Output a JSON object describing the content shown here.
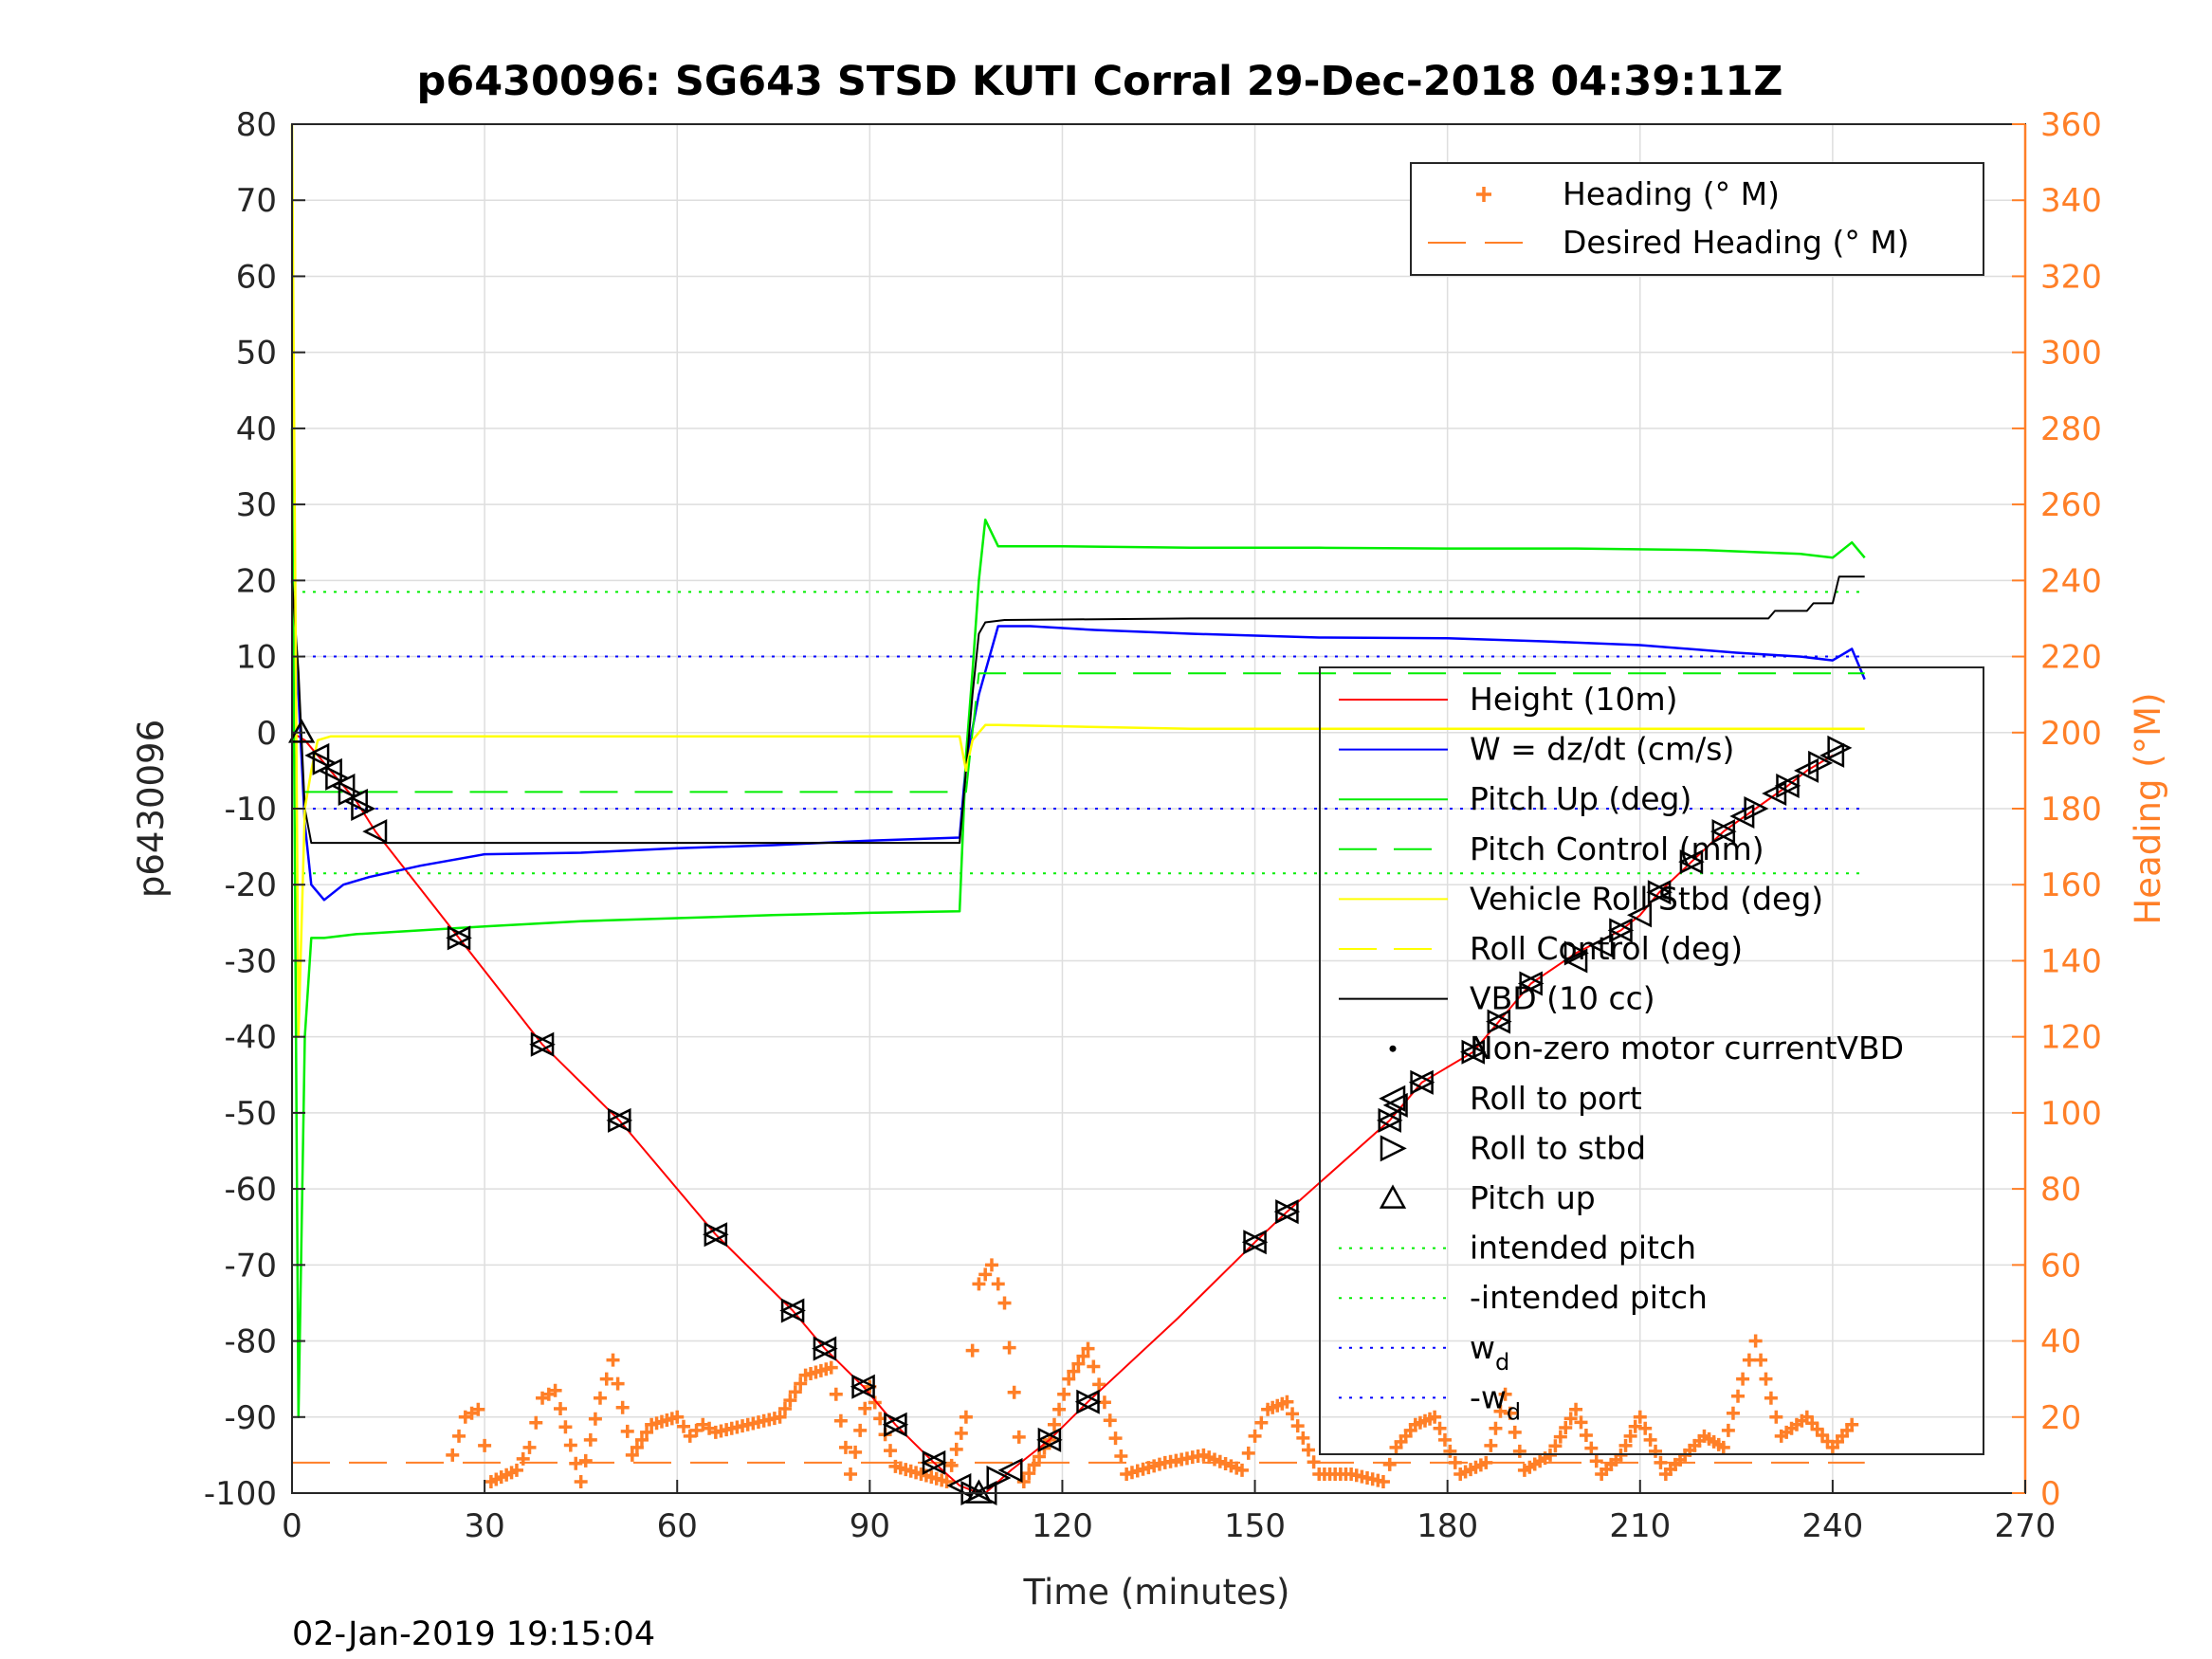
{
  "chart_data": {
    "type": "line",
    "title": "p6430096: SG643 STSD KUTI Corral 29-Dec-2018 04:39:11Z",
    "xlabel": "Time (minutes)",
    "ylabel_left": "p6430096",
    "ylabel_right": "Heading (°M)",
    "footer": "02-Jan-2019 19:15:04",
    "xlim": [
      0,
      270
    ],
    "ylim_left": [
      -100,
      80
    ],
    "ylim_right": [
      0,
      360
    ],
    "grid": true,
    "x_ticks": [
      "0",
      "30",
      "60",
      "90",
      "120",
      "150",
      "180",
      "210",
      "240",
      "270"
    ],
    "y_ticks_left": [
      "-100",
      "-90",
      "-80",
      "-70",
      "-60",
      "-50",
      "-40",
      "-30",
      "-20",
      "-10",
      "0",
      "10",
      "20",
      "30",
      "40",
      "50",
      "60",
      "70",
      "80"
    ],
    "y_ticks_right": [
      "0",
      "20",
      "40",
      "60",
      "80",
      "100",
      "120",
      "140",
      "160",
      "180",
      "200",
      "220",
      "240",
      "260",
      "280",
      "300",
      "320",
      "340",
      "360"
    ],
    "legend_heading": {
      "placement": "top-right",
      "entries": [
        "Heading (° M)",
        "Desired Heading (° M)"
      ]
    },
    "legend_main": {
      "placement": "right",
      "entries": [
        {
          "label": "Height (10m)",
          "color": "#ff0000",
          "style": "solid"
        },
        {
          "label": "W = dz/dt (cm/s)",
          "color": "#0000ff",
          "style": "solid"
        },
        {
          "label": "Pitch Up (deg)",
          "color": "#00ee00",
          "style": "solid"
        },
        {
          "label": "Pitch Control (mm)",
          "color": "#00ee00",
          "style": "dashed"
        },
        {
          "label": "Vehicle Roll Stbd (deg)",
          "color": "#ffff00",
          "style": "solid"
        },
        {
          "label": "Roll Control (deg)",
          "color": "#ffff00",
          "style": "dashed"
        },
        {
          "label": "VBD (10 cc)",
          "color": "#000000",
          "style": "solid"
        },
        {
          "label": "Non-zero motor currentVBD",
          "color": "#000000",
          "style": "dot"
        },
        {
          "label": "Roll to port",
          "color": "#000000",
          "style": "marker-left"
        },
        {
          "label": "Roll to stbd",
          "color": "#000000",
          "style": "marker-right"
        },
        {
          "label": "Pitch up",
          "color": "#000000",
          "style": "marker-up"
        },
        {
          "label": "intended pitch",
          "color": "#00ee00",
          "style": "dotted"
        },
        {
          "label": "-intended pitch",
          "color": "#00ee00",
          "style": "dotted"
        },
        {
          "label": "w",
          "sub": "d",
          "color": "#0000ff",
          "style": "dotted"
        },
        {
          "label": "-w",
          "sub": "d",
          "color": "#0000ff",
          "style": "dotted"
        }
      ]
    },
    "colors": {
      "height": "#ff0000",
      "w": "#0000ff",
      "pitch": "#00ee00",
      "roll": "#ffff00",
      "vbd": "#000000",
      "heading": "#ff7f27",
      "reference_green": "#00ee00",
      "reference_blue": "#0000ff"
    },
    "reference_lines": {
      "intended_pitch": 18.5,
      "neg_intended_pitch": -18.5,
      "wd": 10,
      "neg_wd": -10,
      "desired_heading_deg": 8
    },
    "series": [
      {
        "name": "Height (10m)",
        "axis": "left",
        "x": [
          0,
          2,
          4,
          6,
          8,
          10,
          13,
          26,
          39,
          51,
          66,
          78,
          83,
          89,
          94,
          100,
          104,
          107,
          108,
          112,
          118,
          124,
          138,
          150,
          155,
          171,
          176,
          184,
          188,
          193,
          200,
          207,
          210,
          213,
          218,
          223,
          228,
          233,
          236,
          240
        ],
        "y": [
          0,
          -1,
          -3,
          -5,
          -7,
          -9,
          -13,
          -27,
          -41,
          -51,
          -66,
          -76,
          -81,
          -86,
          -91,
          -96,
          -99,
          -100,
          -100,
          -97,
          -93,
          -88,
          -77,
          -67,
          -63,
          -51,
          -46,
          -42,
          -38,
          -33,
          -29,
          -26,
          -24,
          -21,
          -17,
          -13,
          -10,
          -7,
          -5,
          -3
        ]
      },
      {
        "name": "W = dz/dt (cm/s)",
        "axis": "left",
        "x": [
          0,
          1,
          2,
          3,
          5,
          8,
          12,
          20,
          30,
          45,
          60,
          75,
          90,
          104,
          105,
          107,
          110,
          115,
          125,
          140,
          160,
          180,
          195,
          210,
          225,
          235,
          240,
          243,
          245
        ],
        "y": [
          20,
          5,
          -12,
          -20,
          -22,
          -20,
          -19,
          -17.5,
          -16,
          -15.8,
          -15.2,
          -14.8,
          -14.2,
          -13.8,
          -4,
          5,
          14,
          14,
          13.5,
          13,
          12.5,
          12.4,
          12,
          11.5,
          10.5,
          10,
          9.5,
          11,
          7
        ]
      },
      {
        "name": "Pitch Up (deg)",
        "axis": "left",
        "x": [
          0,
          1,
          2,
          3,
          5,
          10,
          20,
          30,
          45,
          60,
          75,
          90,
          104,
          105,
          106,
          107,
          108,
          110,
          120,
          140,
          160,
          180,
          200,
          220,
          235,
          240,
          243,
          245
        ],
        "y": [
          40,
          -90,
          -40,
          -27,
          -27,
          -26.5,
          -26,
          -25.5,
          -24.8,
          -24.4,
          -24,
          -23.7,
          -23.5,
          -3,
          8,
          20,
          28,
          24.5,
          24.5,
          24.3,
          24.3,
          24.2,
          24.2,
          24,
          23.5,
          23,
          25,
          23
        ]
      },
      {
        "name": "VBD (10 cc)",
        "axis": "left",
        "x": [
          0,
          1,
          2,
          3,
          4,
          104,
          105,
          106,
          107,
          108,
          111,
          140,
          200,
          230,
          231,
          236,
          237,
          240,
          241,
          244,
          245
        ],
        "y": [
          20,
          8,
          -10,
          -14.5,
          -14.5,
          -14.5,
          -5,
          5,
          13,
          14.5,
          14.8,
          15,
          15,
          15,
          16,
          16,
          17,
          17,
          20.5,
          20.5,
          20.5
        ]
      },
      {
        "name": "Vehicle Roll Stbd (deg)",
        "axis": "left",
        "x": [
          0,
          1,
          2,
          3,
          4,
          6,
          10,
          40,
          80,
          104,
          105,
          106,
          107,
          108,
          110,
          140,
          180,
          220,
          240,
          245
        ],
        "y": [
          80,
          -40,
          -10,
          -5,
          -1,
          -0.5,
          -0.5,
          -0.5,
          -0.5,
          -0.5,
          -5,
          -1,
          0,
          1,
          1,
          0.5,
          0.5,
          0.5,
          0.5,
          0.5
        ]
      },
      {
        "name": "Pitch Control (mm)",
        "axis": "left",
        "x": [
          2,
          105,
          107,
          245
        ],
        "y": [
          -7.8,
          -7.8,
          7.8,
          7.8
        ]
      },
      {
        "name": "Heading (° M)",
        "axis": "right",
        "x": [
          25,
          27,
          29,
          31,
          35,
          37,
          39,
          41,
          45,
          48,
          50,
          53,
          56,
          60,
          62,
          64,
          66,
          76,
          80,
          84,
          87,
          90,
          94,
          102,
          105,
          107,
          109,
          111,
          114,
          118,
          121,
          124,
          130,
          136,
          142,
          148,
          150,
          152,
          155,
          160,
          165,
          170,
          172,
          175,
          178,
          182,
          186,
          189,
          192,
          196,
          200,
          204,
          207,
          210,
          214,
          217,
          220,
          223,
          226,
          228,
          232,
          236,
          240,
          243
        ],
        "y": [
          10,
          20,
          22,
          3,
          6,
          12,
          25,
          27,
          3,
          25,
          35,
          10,
          18,
          20,
          15,
          18,
          16,
          20,
          31,
          33,
          5,
          28,
          7,
          3,
          20,
          55,
          60,
          50,
          3,
          14,
          30,
          38,
          5,
          8,
          10,
          6,
          15,
          22,
          24,
          5,
          5,
          3,
          12,
          18,
          20,
          5,
          8,
          26,
          6,
          10,
          22,
          5,
          10,
          20,
          5,
          10,
          15,
          12,
          30,
          40,
          15,
          20,
          12,
          18
        ]
      }
    ],
    "markers": {
      "pitch_up": {
        "x": [
          1.5,
          107
        ],
        "y": [
          0,
          -100
        ]
      },
      "roll_port": {
        "x": [
          4,
          6,
          8,
          10,
          13,
          26,
          39,
          51,
          66,
          78,
          83,
          89,
          94,
          100,
          104,
          108,
          112,
          118,
          124,
          150,
          155,
          171,
          172,
          176,
          184,
          188,
          193,
          200,
          204,
          207,
          210,
          213,
          218,
          223,
          226,
          231,
          233,
          236,
          240
        ],
        "y": [
          -3,
          -5,
          -7,
          -9,
          -13,
          -27,
          -41,
          -51,
          -66,
          -76,
          -81,
          -86,
          -91,
          -96,
          -99,
          -100,
          -97,
          -93,
          -88,
          -67,
          -63,
          -51,
          -49,
          -46,
          -42,
          -38,
          -33,
          -30,
          -28,
          -26,
          -24,
          -21,
          -17,
          -13,
          -11,
          -8,
          -7,
          -5,
          -3
        ]
      },
      "roll_stbd": {
        "x": [
          5,
          7,
          9,
          11,
          26,
          39,
          51,
          66,
          78,
          83,
          89,
          94,
          100,
          106,
          110,
          118,
          124,
          150,
          155,
          171,
          176,
          184,
          188,
          193,
          200,
          207,
          213,
          218,
          223,
          228,
          233,
          238,
          241
        ],
        "y": [
          -4,
          -6,
          -8,
          -10,
          -27,
          -41,
          -51,
          -66,
          -76,
          -81,
          -86,
          -91,
          -96,
          -100,
          -98,
          -93,
          -88,
          -67,
          -63,
          -51,
          -46,
          -42,
          -38,
          -33,
          -29,
          -26,
          -21,
          -17,
          -13,
          -10,
          -7,
          -4,
          -2
        ]
      }
    }
  }
}
